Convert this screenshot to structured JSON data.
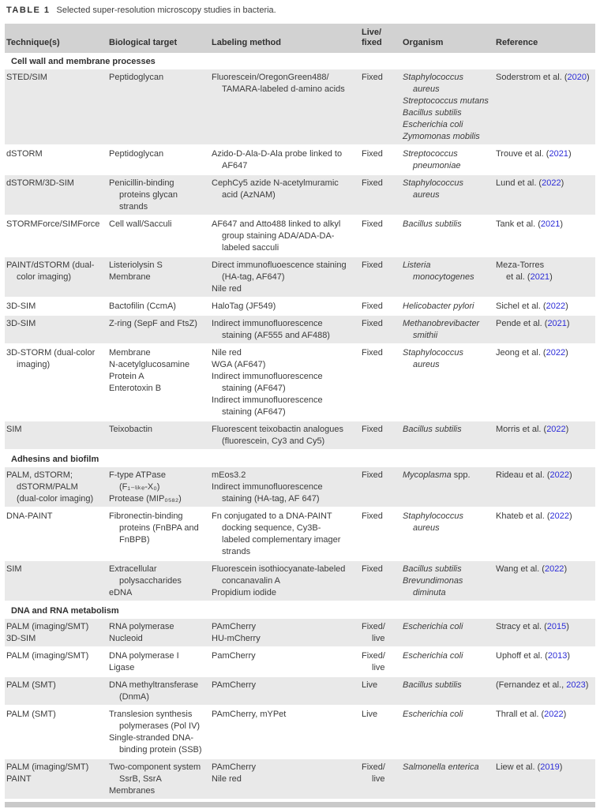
{
  "title": {
    "label": "TABLE 1",
    "caption": "Selected super-resolution microscopy studies in bacteria."
  },
  "colors": {
    "text": "#3b3b3b",
    "header_bg": "#d2d2d2",
    "row_shade": "#e9e9e9",
    "link_blue": "#2c2cd8",
    "footer_bar": "#c9c9c9"
  },
  "header": {
    "columns": [
      {
        "lines": [
          "Technique(s)"
        ]
      },
      {
        "lines": [
          "Biological target"
        ]
      },
      {
        "lines": [
          "Labeling method"
        ]
      },
      {
        "lines": [
          "Live/",
          "fixed"
        ]
      },
      {
        "lines": [
          "Organism"
        ]
      },
      {
        "lines": [
          "Reference"
        ]
      }
    ]
  },
  "sections": [
    {
      "heading": "Cell wall and membrane processes",
      "rows": [
        {
          "shaded": true,
          "cells": {
            "tech": [
              "STED/SIM"
            ],
            "target": [
              "Peptidoglycan"
            ],
            "label": [
              "Fluorescein/OregonGreen488/",
              {
                "t": "TAMARA-labeled d-amino acids",
                "ind": 1
              }
            ],
            "mode": [
              "Fixed"
            ],
            "org": [
              "Staphylococcus",
              {
                "t": "aureus",
                "ind": 1
              },
              "Streptococcus mutans",
              "Bacillus subtilis",
              "Escherichia coli",
              "Zymomonas mobilis"
            ],
            "ref": [
              {
                "seg": [
                  {
                    "t": "Soderstrom et al. ("
                  },
                  {
                    "t": "2020",
                    "y": 1
                  },
                  {
                    "t": ")"
                  }
                ]
              }
            ]
          }
        },
        {
          "shaded": false,
          "cells": {
            "tech": [
              "dSTORM"
            ],
            "target": [
              "Peptidoglycan"
            ],
            "label": [
              "Azido-D-Ala-D-Ala probe linked to",
              {
                "t": "AF647",
                "ind": 1
              }
            ],
            "mode": [
              "Fixed"
            ],
            "org": [
              "Streptococcus",
              {
                "t": "pneumoniae",
                "ind": 1
              }
            ],
            "ref": [
              {
                "seg": [
                  {
                    "t": "Trouve et al. ("
                  },
                  {
                    "t": "2021",
                    "y": 1
                  },
                  {
                    "t": ")"
                  }
                ]
              }
            ]
          }
        },
        {
          "shaded": true,
          "cells": {
            "tech": [
              "dSTORM/3D-SIM"
            ],
            "target": [
              "Penicillin-binding",
              {
                "t": "proteins glycan",
                "ind": 1
              },
              {
                "t": "strands",
                "ind": 1
              }
            ],
            "label": [
              "CephCy5 azide N-acetylmuramic",
              {
                "t": "acid (AzNAM)",
                "ind": 1
              }
            ],
            "mode": [
              "Fixed"
            ],
            "org": [
              "Staphylococcus",
              {
                "t": "aureus",
                "ind": 1
              }
            ],
            "ref": [
              {
                "seg": [
                  {
                    "t": "Lund et al. ("
                  },
                  {
                    "t": "2022",
                    "y": 1
                  },
                  {
                    "t": ")"
                  }
                ]
              }
            ]
          }
        },
        {
          "shaded": false,
          "cells": {
            "tech": [
              "STORMForce/SIMForce"
            ],
            "target": [
              "Cell wall/Sacculi"
            ],
            "label": [
              "AF647 and Atto488 linked to alkyl",
              {
                "t": "group staining ADA/ADA-DA-",
                "ind": 1
              },
              {
                "t": "labeled sacculi",
                "ind": 1
              }
            ],
            "mode": [
              "Fixed"
            ],
            "org": [
              "Bacillus subtilis"
            ],
            "ref": [
              {
                "seg": [
                  {
                    "t": "Tank et al. ("
                  },
                  {
                    "t": "2021",
                    "y": 1
                  },
                  {
                    "t": ")"
                  }
                ]
              }
            ]
          }
        },
        {
          "shaded": true,
          "cells": {
            "tech": [
              "PAINT/dSTORM (dual-",
              {
                "t": "color imaging)",
                "ind": 1
              }
            ],
            "target": [
              "Listeriolysin S",
              "Membrane"
            ],
            "label": [
              "Direct immunofluoescence staining",
              {
                "t": "(HA-tag, AF647)",
                "ind": 1
              },
              "Nile red"
            ],
            "mode": [
              "Fixed"
            ],
            "org": [
              "Listeria",
              {
                "t": "monocytogenes",
                "ind": 1
              }
            ],
            "ref": [
              "Meza-Torres",
              {
                "ind": 1,
                "seg": [
                  {
                    "t": "et al. ("
                  },
                  {
                    "t": "2021",
                    "y": 1
                  },
                  {
                    "t": ")"
                  }
                ]
              }
            ]
          }
        },
        {
          "shaded": false,
          "cells": {
            "tech": [
              "3D-SIM"
            ],
            "target": [
              "Bactofilin (CcmA)"
            ],
            "label": [
              "HaloTag (JF549)"
            ],
            "mode": [
              "Fixed"
            ],
            "org": [
              "Helicobacter pylori"
            ],
            "ref": [
              {
                "seg": [
                  {
                    "t": "Sichel et al. ("
                  },
                  {
                    "t": "2022",
                    "y": 1
                  },
                  {
                    "t": ")"
                  }
                ]
              }
            ]
          }
        },
        {
          "shaded": true,
          "cells": {
            "tech": [
              "3D-SIM"
            ],
            "target": [
              "Z-ring (SepF and FtsZ)"
            ],
            "label": [
              "Indirect immunofluorescence",
              {
                "t": "staining (AF555 and AF488)",
                "ind": 1
              }
            ],
            "mode": [
              "Fixed"
            ],
            "org": [
              "Methanobrevibacter",
              {
                "t": "smithii",
                "ind": 1
              }
            ],
            "ref": [
              {
                "seg": [
                  {
                    "t": "Pende et al. ("
                  },
                  {
                    "t": "2021",
                    "y": 1
                  },
                  {
                    "t": ")"
                  }
                ]
              }
            ]
          }
        },
        {
          "shaded": false,
          "cells": {
            "tech": [
              "3D-STORM (dual-color",
              {
                "t": "imaging)",
                "ind": 1
              }
            ],
            "target": [
              "Membrane",
              "N-acetylglucosamine",
              "Protein A",
              "Enterotoxin B"
            ],
            "label": [
              "Nile red",
              "WGA (AF647)",
              "Indirect immunofluorescence",
              {
                "t": "staining (AF647)",
                "ind": 1
              },
              "Indirect immunofluorescence",
              {
                "t": "staining (AF647)",
                "ind": 1
              }
            ],
            "mode": [
              "Fixed"
            ],
            "org": [
              "Staphylococcus",
              {
                "t": "aureus",
                "ind": 1
              }
            ],
            "ref": [
              {
                "seg": [
                  {
                    "t": "Jeong et al. ("
                  },
                  {
                    "t": "2022",
                    "y": 1
                  },
                  {
                    "t": ")"
                  }
                ]
              }
            ]
          }
        },
        {
          "shaded": true,
          "cells": {
            "tech": [
              "SIM"
            ],
            "target": [
              "Teixobactin"
            ],
            "label": [
              "Fluorescent teixobactin analogues",
              {
                "t": "(fluorescein, Cy3 and Cy5)",
                "ind": 1
              }
            ],
            "mode": [
              "Fixed"
            ],
            "org": [
              "Bacillus subtilis"
            ],
            "ref": [
              {
                "seg": [
                  {
                    "t": "Morris et al. ("
                  },
                  {
                    "t": "2022",
                    "y": 1
                  },
                  {
                    "t": ")"
                  }
                ]
              }
            ]
          }
        }
      ]
    },
    {
      "heading": "Adhesins and biofilm",
      "rows": [
        {
          "shaded": true,
          "cells": {
            "tech": [
              "PALM, dSTORM;",
              {
                "t": "dSTORM/PALM",
                "ind": 1
              },
              {
                "t": "(dual-color imaging)",
                "ind": 1
              }
            ],
            "target": [
              "F-type ATPase",
              {
                "t": "(F₁₋ₗᵢₖₑ-X₀)",
                "ind": 1
              },
              "Protease (MIP₀₅₈₂)"
            ],
            "label": [
              "mEos3.2",
              "Indirect immunofluorescence",
              {
                "t": "staining (HA-tag, AF 647)",
                "ind": 1
              }
            ],
            "mode": [
              "Fixed"
            ],
            "org": [
              {
                "seg": [
                  {
                    "t": "Mycoplasma"
                  },
                  {
                    "t": " spp.",
                    "u": 1
                  }
                ]
              }
            ],
            "ref": [
              {
                "seg": [
                  {
                    "t": "Rideau et al. ("
                  },
                  {
                    "t": "2022",
                    "y": 1
                  },
                  {
                    "t": ")"
                  }
                ]
              }
            ]
          }
        },
        {
          "shaded": false,
          "cells": {
            "tech": [
              "DNA-PAINT"
            ],
            "target": [
              "Fibronectin-binding",
              {
                "t": "proteins (FnBPA and",
                "ind": 1
              },
              {
                "t": "FnBPB)",
                "ind": 1
              }
            ],
            "label": [
              "Fn conjugated to a DNA-PAINT",
              {
                "t": "docking sequence, Cy3B-",
                "ind": 1
              },
              {
                "t": "labeled complementary imager",
                "ind": 1
              },
              {
                "t": "strands",
                "ind": 1
              }
            ],
            "mode": [
              "Fixed"
            ],
            "org": [
              "Staphylococcus",
              {
                "t": "aureus",
                "ind": 1
              }
            ],
            "ref": [
              {
                "seg": [
                  {
                    "t": "Khateb et al. ("
                  },
                  {
                    "t": "2022",
                    "y": 1
                  },
                  {
                    "t": ")"
                  }
                ]
              }
            ]
          }
        },
        {
          "shaded": true,
          "cells": {
            "tech": [
              "SIM"
            ],
            "target": [
              "Extracellular",
              {
                "t": "polysaccharides",
                "ind": 1
              },
              "eDNA"
            ],
            "label": [
              "Fluorescein isothiocyanate-labeled",
              {
                "t": "concanavalin A",
                "ind": 1
              },
              "Propidium iodide"
            ],
            "mode": [
              "Fixed"
            ],
            "org": [
              "Bacillus subtilis",
              "Brevundimonas",
              {
                "t": "diminuta",
                "ind": 1
              }
            ],
            "ref": [
              {
                "seg": [
                  {
                    "t": "Wang et al. ("
                  },
                  {
                    "t": "2022",
                    "y": 1
                  },
                  {
                    "t": ")"
                  }
                ]
              }
            ]
          }
        }
      ]
    },
    {
      "heading": "DNA and RNA metabolism",
      "rows": [
        {
          "shaded": true,
          "cells": {
            "tech": [
              "PALM (imaging/SMT)",
              "3D-SIM"
            ],
            "target": [
              "RNA polymerase",
              "Nucleoid"
            ],
            "label": [
              "PAmCherry",
              "HU-mCherry"
            ],
            "mode": [
              "Fixed/",
              {
                "t": "live",
                "ind": 1
              }
            ],
            "org": [
              "Escherichia coli"
            ],
            "ref": [
              {
                "seg": [
                  {
                    "t": "Stracy et al. ("
                  },
                  {
                    "t": "2015",
                    "y": 1
                  },
                  {
                    "t": ")"
                  }
                ]
              }
            ]
          }
        },
        {
          "shaded": false,
          "cells": {
            "tech": [
              "PALM (imaging/SMT)"
            ],
            "target": [
              "DNA polymerase I",
              "Ligase"
            ],
            "label": [
              "PamCherry"
            ],
            "mode": [
              "Fixed/",
              {
                "t": "live",
                "ind": 1
              }
            ],
            "org": [
              "Escherichia coli"
            ],
            "ref": [
              {
                "seg": [
                  {
                    "t": "Uphoff et al. ("
                  },
                  {
                    "t": "2013",
                    "y": 1
                  },
                  {
                    "t": ")"
                  }
                ]
              }
            ]
          }
        },
        {
          "shaded": true,
          "cells": {
            "tech": [
              "PALM (SMT)"
            ],
            "target": [
              "DNA methyltransferase",
              {
                "t": "(DnmA)",
                "ind": 1
              }
            ],
            "label": [
              "PAmCherry"
            ],
            "mode": [
              "Live"
            ],
            "org": [
              "Bacillus subtilis"
            ],
            "ref": [
              {
                "seg": [
                  {
                    "t": "(Fernandez et al., "
                  },
                  {
                    "t": "2023",
                    "y": 1
                  },
                  {
                    "t": ")"
                  }
                ]
              }
            ]
          }
        },
        {
          "shaded": false,
          "cells": {
            "tech": [
              "PALM (SMT)"
            ],
            "target": [
              "Translesion synthesis",
              {
                "t": "polymerases (Pol IV)",
                "ind": 1
              },
              "Single-stranded DNA-",
              {
                "t": "binding protein (SSB)",
                "ind": 1
              }
            ],
            "label": [
              "PAmCherry, mYPet"
            ],
            "mode": [
              "Live"
            ],
            "org": [
              "Escherichia coli"
            ],
            "ref": [
              {
                "seg": [
                  {
                    "t": "Thrall et al. ("
                  },
                  {
                    "t": "2022",
                    "y": 1
                  },
                  {
                    "t": ")"
                  }
                ]
              }
            ]
          }
        },
        {
          "shaded": true,
          "cells": {
            "tech": [
              "PALM (imaging/SMT)",
              "PAINT"
            ],
            "target": [
              "Two-component system",
              {
                "t": "SsrB, SsrA",
                "ind": 1
              },
              "Membranes"
            ],
            "label": [
              "PAmCherry",
              "Nile red"
            ],
            "mode": [
              "Fixed/",
              {
                "t": "live",
                "ind": 1
              }
            ],
            "org": [
              "Salmonella enterica"
            ],
            "ref": [
              {
                "seg": [
                  {
                    "t": "Liew et al. ("
                  },
                  {
                    "t": "2019",
                    "y": 1
                  },
                  {
                    "t": ")"
                  }
                ]
              }
            ]
          }
        }
      ]
    }
  ]
}
